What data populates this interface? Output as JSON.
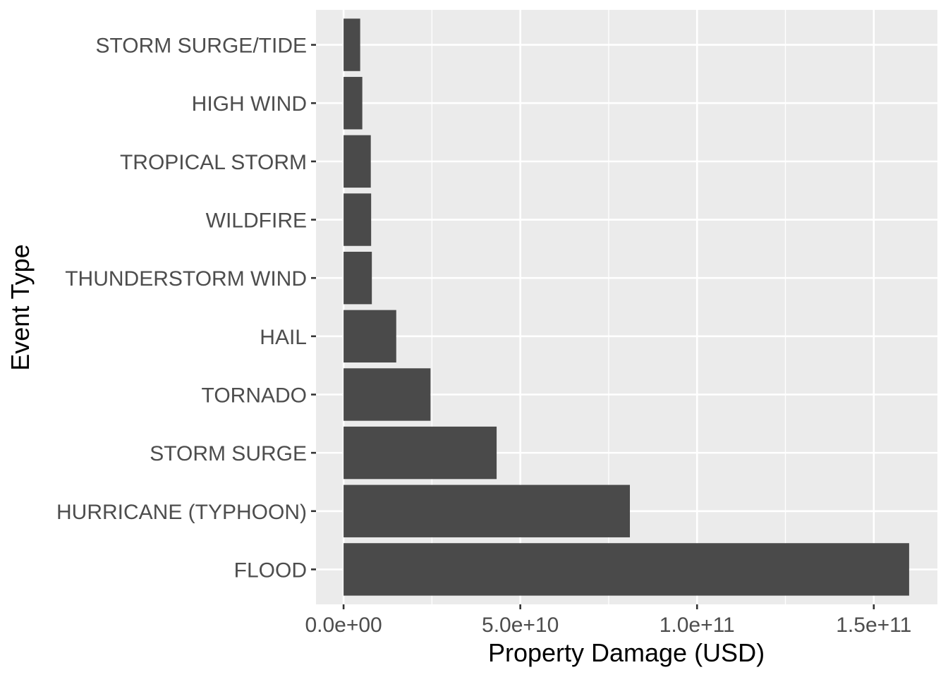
{
  "chart_data": {
    "type": "bar",
    "orientation": "horizontal",
    "title": "",
    "xlabel": "Property Damage (USD)",
    "ylabel": "Event Type",
    "categories": [
      "FLOOD",
      "HURRICANE (TYPHOON)",
      "STORM SURGE",
      "TORNADO",
      "HAIL",
      "THUNDERSTORM WIND",
      "WILDFIRE",
      "TROPICAL STORM",
      "HIGH WIND",
      "STORM SURGE/TIDE"
    ],
    "values": [
      160000000000,
      81000000000,
      43300000000,
      24600000000,
      14900000000,
      8000000000,
      7800000000,
      7700000000,
      5300000000,
      4700000000
    ],
    "xlim": [
      -7800000000,
      168000000000
    ],
    "xticks": [
      0,
      50000000000,
      100000000000,
      150000000000
    ],
    "xtick_labels": [
      "0.0e+00",
      "5.0e+10",
      "1.0e+11",
      "1.5e+11"
    ],
    "grid": true,
    "colors": {
      "bar": "#4a4a4a",
      "panel": "#ebebeb",
      "grid": "#ffffff",
      "tick_text": "#4d4d4d",
      "title_text": "#000000"
    }
  }
}
